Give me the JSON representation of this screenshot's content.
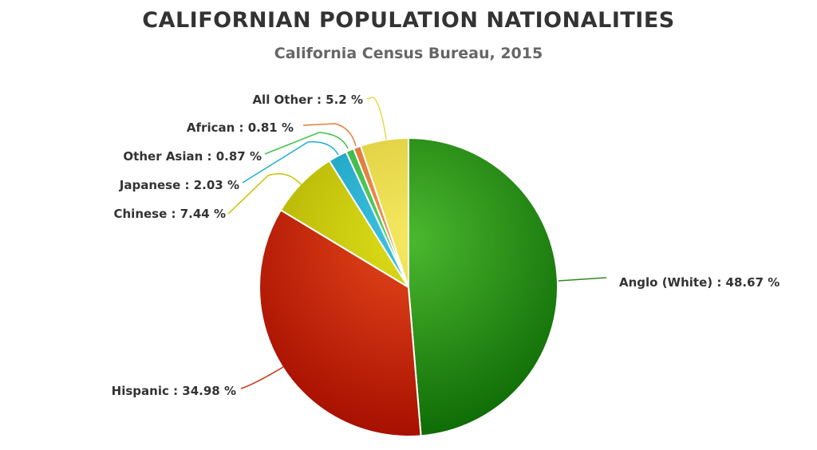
{
  "title": "CALIFORNIAN POPULATION NATIONALITIES",
  "subtitle": "California Census Bureau, 2015",
  "chart_data": {
    "type": "pie",
    "title": "CALIFORNIAN POPULATION NATIONALITIES",
    "subtitle": "California Census Bureau, 2015",
    "unit": "%",
    "legend": "none",
    "slices": [
      {
        "name": "Anglo (White)",
        "value": 48.67,
        "label": "Anglo (White) : 48.67 %",
        "color": "#2e8b1f",
        "color_light": "#4cb82f",
        "color_dark": "#0d6a05"
      },
      {
        "name": "Hispanic",
        "value": 34.98,
        "label": "Hispanic : 34.98 %",
        "color": "#c92d0e",
        "color_light": "#e5481b",
        "color_dark": "#a60e00"
      },
      {
        "name": "Chinese",
        "value": 7.44,
        "label": "Chinese : 7.44 %",
        "color": "#c7c400",
        "color_light": "#dede1a",
        "color_dark": "#a9a900"
      },
      {
        "name": "Japanese",
        "value": 2.03,
        "label": "Japanese : 2.03 %",
        "color": "#20aed0",
        "color_light": "#3dc4e2",
        "color_dark": "#1293b5"
      },
      {
        "name": "Other Asian",
        "value": 0.87,
        "label": "Other Asian : 0.87 %",
        "color": "#3fc24a",
        "color_light": "#5bd566",
        "color_dark": "#2aa535"
      },
      {
        "name": "African",
        "value": 0.81,
        "label": "African : 0.81 %",
        "color": "#e87e3a",
        "color_light": "#f2955a",
        "color_dark": "#cf6420"
      },
      {
        "name": "All Other",
        "value": 5.2,
        "label": "All Other : 5.2 %",
        "color": "#e8d748",
        "color_light": "#f5e860",
        "color_dark": "#d2bf30"
      }
    ]
  }
}
